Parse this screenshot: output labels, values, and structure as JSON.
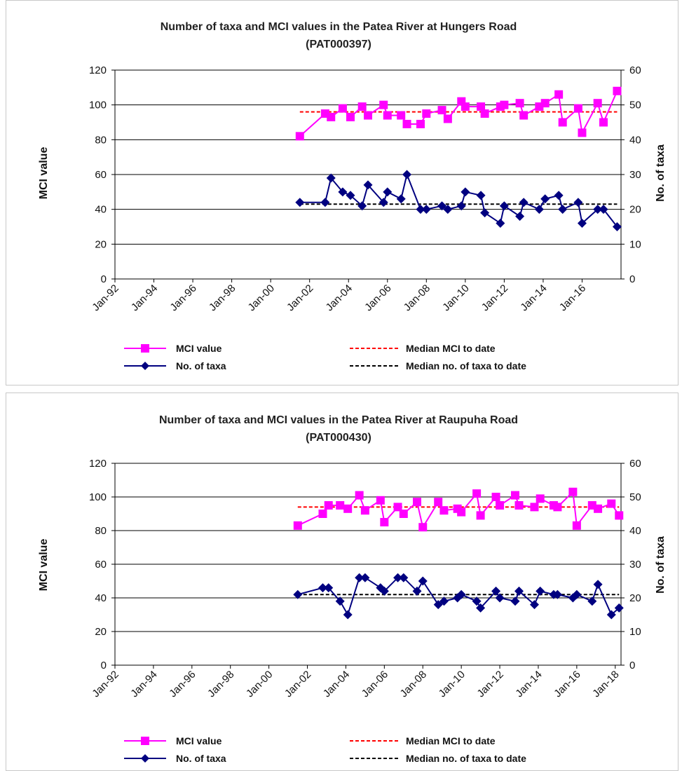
{
  "colors": {
    "mci": "#ff00ff",
    "taxa": "#000080",
    "median_mci": "#ff0000",
    "median_taxa": "#000000"
  },
  "chart_data": [
    {
      "type": "line",
      "title": "Number of taxa and MCI values in the Patea River at Hungers Road",
      "subtitle": "(PAT000397)",
      "ylabel": "MCI value",
      "y2label": "No. of taxa",
      "ylim": [
        0,
        120
      ],
      "y2lim": [
        0,
        60
      ],
      "yticks": [
        0,
        20,
        40,
        60,
        80,
        100,
        120
      ],
      "y2ticks": [
        0,
        10,
        20,
        30,
        40,
        50,
        60
      ],
      "xlim": [
        1992.0,
        2018.0
      ],
      "xtick_labels": [
        "Jan-92",
        "Jan-94",
        "Jan-96",
        "Jan-98",
        "Jan-00",
        "Jan-02",
        "Jan-04",
        "Jan-06",
        "Jan-08",
        "Jan-10",
        "Jan-12",
        "Jan-14",
        "Jan-16"
      ],
      "xtick_values": [
        1992,
        1994,
        1996,
        1998,
        2000,
        2002,
        2004,
        2006,
        2008,
        2010,
        2012,
        2014,
        2016
      ],
      "grid": "horizontal",
      "legend_position": "bottom",
      "legend": [
        "MCI value",
        "Median MCI to date",
        "No. of taxa",
        "Median no. of taxa to date"
      ],
      "series": [
        {
          "name": "MCI value",
          "axis": "left",
          "x": [
            2001.5,
            2002.8,
            2003.1,
            2003.7,
            2004.1,
            2004.7,
            2005.0,
            2005.8,
            2006.0,
            2006.7,
            2007.0,
            2007.7,
            2008.0,
            2008.8,
            2009.1,
            2009.8,
            2010.0,
            2010.8,
            2011.0,
            2011.8,
            2012.0,
            2012.8,
            2013.0,
            2013.8,
            2014.1,
            2014.8,
            2015.0,
            2015.8,
            2016.0,
            2016.8,
            2017.1,
            2017.8
          ],
          "y": [
            82,
            95,
            93,
            98,
            93,
            99,
            94,
            100,
            94,
            94,
            89,
            89,
            95,
            97,
            92,
            102,
            99,
            99,
            95,
            99,
            100,
            101,
            94,
            99,
            101,
            106,
            90,
            98,
            84,
            101,
            90,
            108
          ]
        },
        {
          "name": "No. of taxa",
          "axis": "right",
          "x": [
            2001.5,
            2002.8,
            2003.1,
            2003.7,
            2004.1,
            2004.7,
            2005.0,
            2005.8,
            2006.0,
            2006.7,
            2007.0,
            2007.7,
            2008.0,
            2008.8,
            2009.1,
            2009.8,
            2010.0,
            2010.8,
            2011.0,
            2011.8,
            2012.0,
            2012.8,
            2013.0,
            2013.8,
            2014.1,
            2014.8,
            2015.0,
            2015.8,
            2016.0,
            2016.8,
            2017.1,
            2017.8
          ],
          "y": [
            22,
            22,
            29,
            25,
            24,
            21,
            27,
            22,
            25,
            23,
            30,
            20,
            20,
            21,
            20,
            21,
            25,
            24,
            19,
            16,
            21,
            18,
            22,
            20,
            23,
            24,
            20,
            22,
            16,
            20,
            20,
            15
          ]
        },
        {
          "name": "Median MCI to date",
          "axis": "left",
          "x": [
            2001.5,
            2017.8
          ],
          "y": [
            96,
            96
          ]
        },
        {
          "name": "Median no. of taxa to date",
          "axis": "right",
          "x": [
            2001.5,
            2017.8
          ],
          "y": [
            21.5,
            21.5
          ]
        }
      ]
    },
    {
      "type": "line",
      "title": "Number of taxa and MCI values in the Patea River at Raupuha Road",
      "subtitle": "(PAT000430)",
      "ylabel": "MCI value",
      "y2label": "No. of taxa",
      "ylim": [
        0,
        120
      ],
      "y2lim": [
        0,
        60
      ],
      "yticks": [
        0,
        20,
        40,
        60,
        80,
        100,
        120
      ],
      "y2ticks": [
        0,
        10,
        20,
        30,
        40,
        50,
        60
      ],
      "xlim": [
        1992.0,
        2018.3
      ],
      "xtick_labels": [
        "Jan-92",
        "Jan-94",
        "Jan-96",
        "Jan-98",
        "Jan-00",
        "Jan-02",
        "Jan-04",
        "Jan-06",
        "Jan-08",
        "Jan-10",
        "Jan-12",
        "Jan-14",
        "Jan-16",
        "Jan-18"
      ],
      "xtick_values": [
        1992,
        1994,
        1996,
        1998,
        2000,
        2002,
        2004,
        2006,
        2008,
        2010,
        2012,
        2014,
        2016,
        2018
      ],
      "grid": "horizontal",
      "legend_position": "bottom",
      "legend": [
        "MCI value",
        "Median MCI to date",
        "No. of taxa",
        "Median no. of taxa to date"
      ],
      "series": [
        {
          "name": "MCI value",
          "axis": "left",
          "x": [
            2001.5,
            2002.8,
            2003.1,
            2003.7,
            2004.1,
            2004.7,
            2005.0,
            2005.8,
            2006.0,
            2006.7,
            2007.0,
            2007.7,
            2008.0,
            2008.8,
            2009.1,
            2009.8,
            2010.0,
            2010.8,
            2011.0,
            2011.8,
            2012.0,
            2012.8,
            2013.0,
            2013.8,
            2014.1,
            2014.8,
            2015.0,
            2015.8,
            2016.0,
            2016.8,
            2017.1,
            2017.8,
            2018.2
          ],
          "y": [
            83,
            90,
            95,
            95,
            93,
            101,
            92,
            98,
            85,
            94,
            90,
            97,
            82,
            97,
            92,
            93,
            91,
            102,
            89,
            100,
            95,
            101,
            95,
            94,
            99,
            95,
            94,
            103,
            83,
            95,
            93,
            96,
            89
          ]
        },
        {
          "name": "No. of taxa",
          "axis": "right",
          "x": [
            2001.5,
            2002.8,
            2003.1,
            2003.7,
            2004.1,
            2004.7,
            2005.0,
            2005.8,
            2006.0,
            2006.7,
            2007.0,
            2007.7,
            2008.0,
            2008.8,
            2009.1,
            2009.8,
            2010.0,
            2010.8,
            2011.0,
            2011.8,
            2012.0,
            2012.8,
            2013.0,
            2013.8,
            2014.1,
            2014.8,
            2015.0,
            2015.8,
            2016.0,
            2016.8,
            2017.1,
            2017.8,
            2018.2
          ],
          "y": [
            21,
            23,
            23,
            19,
            15,
            26,
            26,
            23,
            22,
            26,
            26,
            22,
            25,
            18,
            19,
            20,
            21,
            19,
            17,
            22,
            20,
            19,
            22,
            18,
            22,
            21,
            21,
            20,
            21,
            19,
            24,
            15,
            17
          ]
        },
        {
          "name": "Median MCI to date",
          "axis": "left",
          "x": [
            2001.5,
            2018.2
          ],
          "y": [
            94,
            94
          ]
        },
        {
          "name": "Median no. of taxa to date",
          "axis": "right",
          "x": [
            2001.5,
            2018.2
          ],
          "y": [
            21,
            21
          ]
        }
      ]
    }
  ]
}
